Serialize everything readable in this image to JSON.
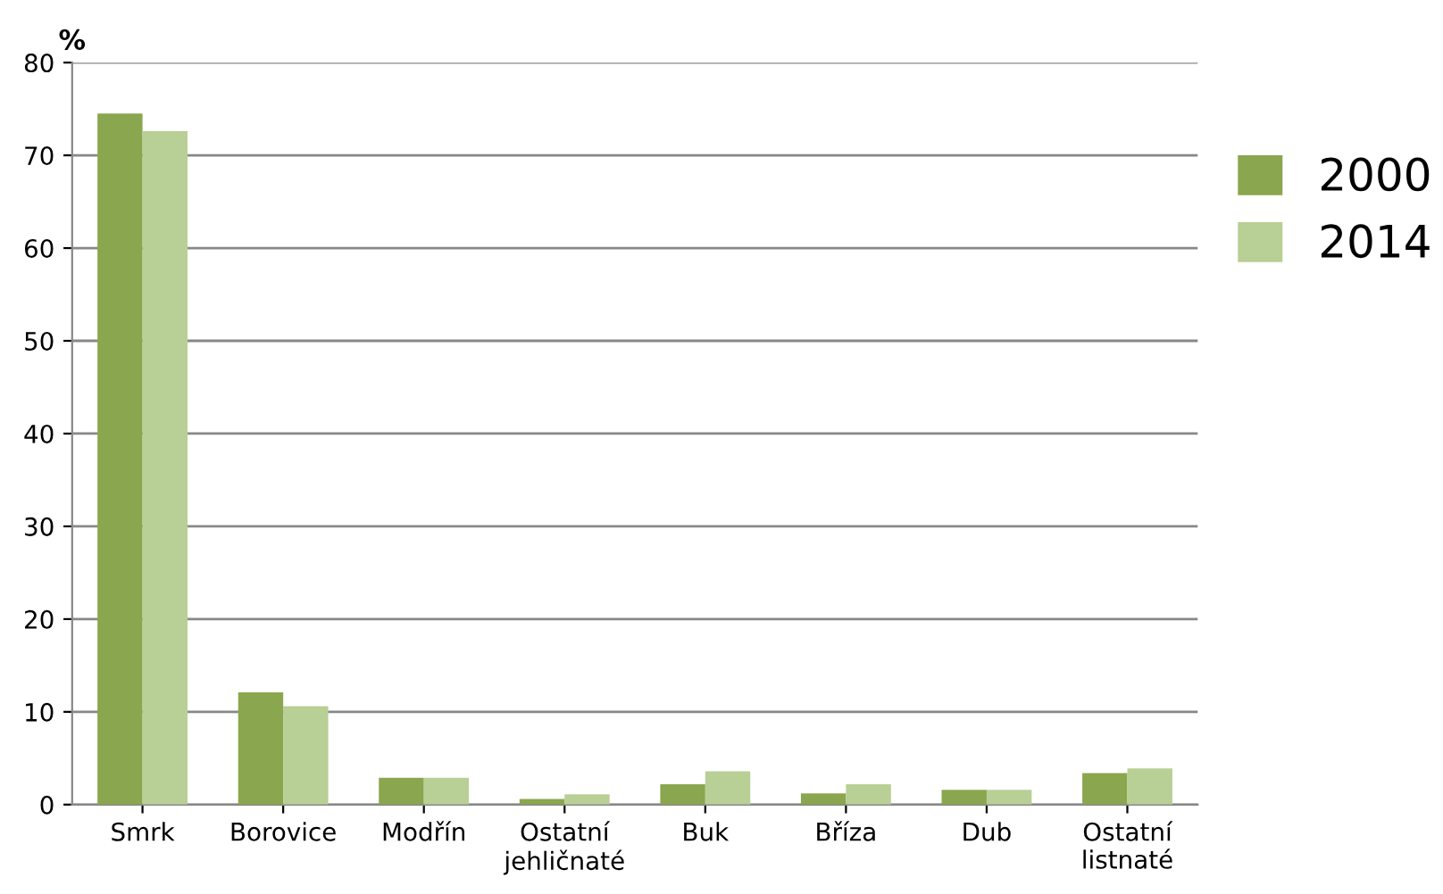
{
  "chart_data": {
    "type": "bar",
    "ylabel": "%",
    "categories": [
      "Smrk",
      "Borovice",
      "Modřín",
      "Ostatní\njehličnaté",
      "Buk",
      "Bříza",
      "Dub",
      "Ostatní\nlistnaté"
    ],
    "series": [
      {
        "name": "2000",
        "color": "#8aa64e",
        "values": [
          74.5,
          12.1,
          2.9,
          0.6,
          2.2,
          1.2,
          1.6,
          3.4
        ]
      },
      {
        "name": "2014",
        "color": "#b8cf95",
        "values": [
          72.6,
          10.6,
          2.9,
          1.1,
          3.6,
          2.2,
          1.6,
          3.9
        ]
      }
    ],
    "ylim": [
      0,
      80
    ],
    "yticks": [
      0,
      10,
      20,
      30,
      40,
      50,
      60,
      70,
      80
    ],
    "grid": "y",
    "legend": "right"
  }
}
